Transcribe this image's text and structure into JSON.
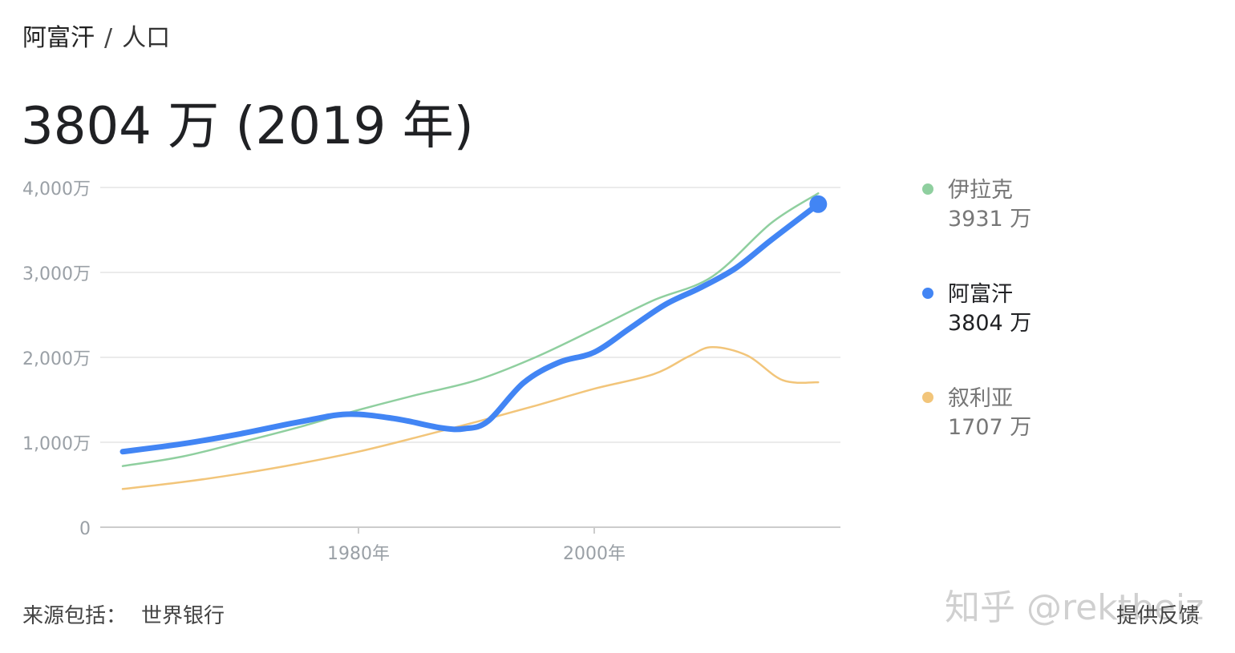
{
  "breadcrumb": {
    "country": "阿富汗",
    "separator": "/",
    "metric": "人口"
  },
  "headline": "3804 万 (2019 年)",
  "legend": [
    {
      "name": "伊拉克",
      "value": "3931 万",
      "color": "#8fcf9f",
      "active": false
    },
    {
      "name": "阿富汗",
      "value": "3804 万",
      "color": "#4285f4",
      "active": true
    },
    {
      "name": "叙利亚",
      "value": "1707 万",
      "color": "#f2c57a",
      "active": false
    }
  ],
  "footer": {
    "source_label": "来源包括：",
    "source_name": "世界银行",
    "feedback": "提供反馈"
  },
  "watermark": "知乎 @rektbeiz",
  "chart_data": {
    "type": "line",
    "y_tick_labels": [
      "0",
      "1,000万",
      "2,000万",
      "3,000万",
      "4,000万"
    ],
    "y_ticks": [
      0,
      1000,
      2000,
      3000,
      4000
    ],
    "ylim": [
      0,
      4000
    ],
    "y_unit": "万",
    "x_tick_labels": [
      "1980年",
      "2000年"
    ],
    "x_ticks": [
      1980,
      2000
    ],
    "xlim": [
      1958,
      2020
    ],
    "grid": true,
    "series": [
      {
        "name": "伊拉克",
        "color": "#8fcf9f",
        "x": [
          1960,
          1965,
          1970,
          1975,
          1980,
          1985,
          1990,
          1995,
          2000,
          2005,
          2010,
          2015,
          2019
        ],
        "values": [
          720,
          830,
          1000,
          1180,
          1380,
          1560,
          1730,
          2000,
          2330,
          2670,
          2950,
          3580,
          3931
        ]
      },
      {
        "name": "阿富汗",
        "color": "#4285f4",
        "x": [
          1960,
          1965,
          1970,
          1975,
          1979,
          1983,
          1987,
          1989,
          1991,
          1994,
          1997,
          2000,
          2003,
          2006,
          2009,
          2012,
          2015,
          2019
        ],
        "values": [
          890,
          980,
          1100,
          1240,
          1330,
          1280,
          1170,
          1160,
          1250,
          1700,
          1940,
          2060,
          2340,
          2620,
          2820,
          3050,
          3380,
          3804
        ]
      },
      {
        "name": "叙利亚",
        "color": "#f2c57a",
        "x": [
          1960,
          1965,
          1970,
          1975,
          1980,
          1985,
          1990,
          1995,
          2000,
          2005,
          2008,
          2010,
          2013,
          2016,
          2019
        ],
        "values": [
          450,
          530,
          630,
          750,
          890,
          1060,
          1240,
          1430,
          1630,
          1800,
          2010,
          2120,
          2020,
          1730,
          1707
        ]
      }
    ],
    "highlight": {
      "series": "阿富汗",
      "x": 2019,
      "value": 3804
    }
  }
}
